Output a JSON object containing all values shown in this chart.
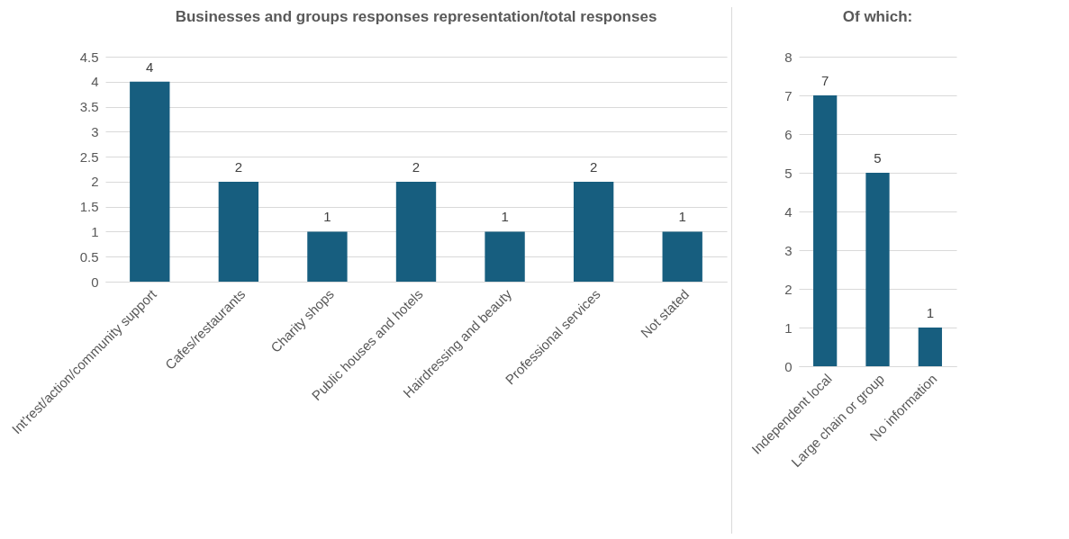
{
  "chart_data": [
    {
      "type": "bar",
      "title": "Businesses and groups responses representation/total responses",
      "categories": [
        "Int'rest/action/community support",
        "Cafes/restaurants",
        "Charity shops",
        "Public houses and hotels",
        "Hairdressing and beauty",
        "Professional services",
        "Not stated"
      ],
      "values": [
        4,
        2,
        1,
        2,
        1,
        2,
        1
      ],
      "color": "#175e7f",
      "ylim": [
        0,
        4.5
      ],
      "yticks": [
        0,
        0.5,
        1,
        1.5,
        2,
        2.5,
        3,
        3.5,
        4,
        4.5
      ],
      "grid": "y",
      "data_labels": true
    },
    {
      "type": "bar",
      "title": "Of which:",
      "categories": [
        "Independent local",
        "Large chain or group",
        "No information"
      ],
      "values": [
        7,
        5,
        1
      ],
      "color": "#175e7f",
      "ylim": [
        0,
        8
      ],
      "yticks": [
        0,
        1,
        2,
        3,
        4,
        5,
        6,
        7,
        8
      ],
      "grid": "y",
      "data_labels": true
    }
  ]
}
